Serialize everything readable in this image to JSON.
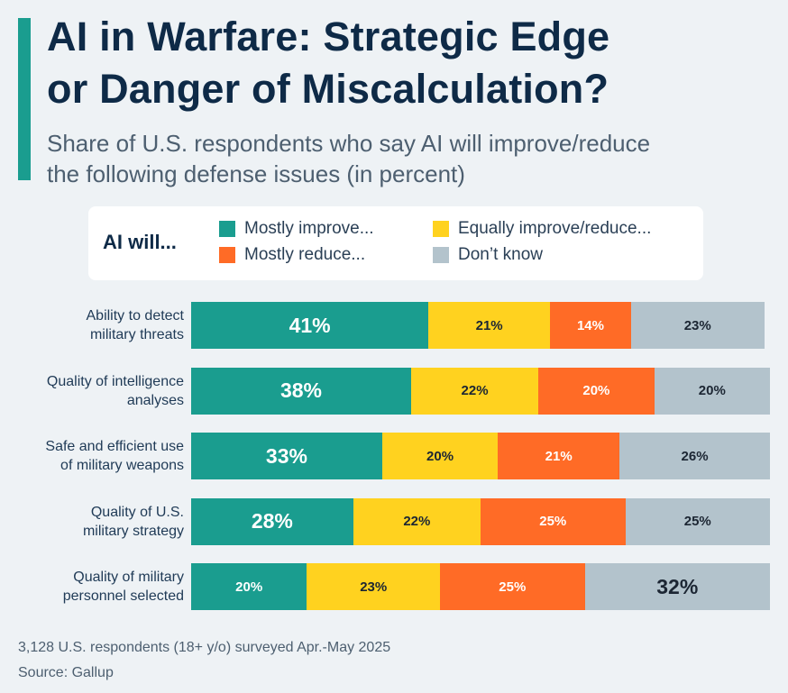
{
  "title_line1": "AI in Warfare: Strategic Edge",
  "title_line2": "or Danger of Miscalculation?",
  "subtitle_line1": "Share of U.S. respondents who say AI will improve/reduce",
  "subtitle_line2": "the following defense issues (in percent)",
  "legend": {
    "title": "AI will...",
    "items": [
      {
        "label": "Mostly improve...",
        "color": "#1a9d8f"
      },
      {
        "label": "Equally improve/reduce...",
        "color": "#ffd21f"
      },
      {
        "label": "Mostly reduce...",
        "color": "#ff6b26"
      },
      {
        "label": "Don’t know",
        "color": "#b3c3cc"
      }
    ]
  },
  "chart_data": {
    "type": "bar",
    "orientation": "horizontal",
    "stacked": true,
    "categories": [
      [
        "Ability to detect",
        "military threats"
      ],
      [
        "Quality of intelligence",
        "analyses"
      ],
      [
        "Safe and efficient use",
        "of military weapons"
      ],
      [
        "Quality of U.S.",
        "military strategy"
      ],
      [
        "Quality of military",
        "personnel selected"
      ]
    ],
    "series": [
      {
        "name": "Mostly improve...",
        "color": "#1a9d8f",
        "values": [
          41,
          38,
          33,
          28,
          20
        ]
      },
      {
        "name": "Equally improve/reduce...",
        "color": "#ffd21f",
        "values": [
          21,
          22,
          20,
          22,
          23
        ]
      },
      {
        "name": "Mostly reduce...",
        "color": "#ff6b26",
        "values": [
          14,
          20,
          21,
          25,
          25
        ]
      },
      {
        "name": "Don’t know",
        "color": "#b3c3cc",
        "values": [
          23,
          20,
          26,
          25,
          32
        ]
      }
    ],
    "labels": [
      [
        "41%",
        "21%",
        "14%",
        "23%"
      ],
      [
        "38%",
        "22%",
        "20%",
        "20%"
      ],
      [
        "33%",
        "20%",
        "21%",
        "26%"
      ],
      [
        "28%",
        "22%",
        "25%",
        "25%"
      ],
      [
        "20%",
        "23%",
        "25%",
        "32%"
      ]
    ],
    "emphasized": [
      [
        true,
        false,
        false,
        false
      ],
      [
        true,
        false,
        false,
        false
      ],
      [
        true,
        false,
        false,
        false
      ],
      [
        true,
        false,
        false,
        false
      ],
      [
        false,
        false,
        false,
        true
      ]
    ]
  },
  "footer": {
    "note": "3,128 U.S. respondents (18+ y/o) surveyed Apr.-May 2025",
    "source": "Source: Gallup"
  }
}
